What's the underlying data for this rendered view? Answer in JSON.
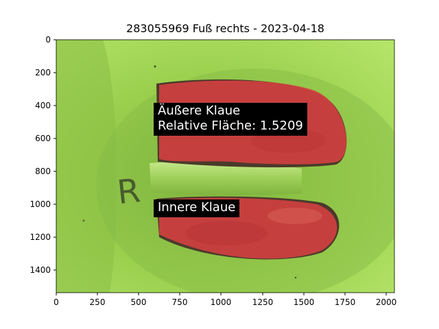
{
  "title": "283055969 Fuß rechts - 2023-04-18",
  "annotations": {
    "outer_name": "Äußere Klaue",
    "outer_area_label": "Relative Fläche: 1.5209",
    "inner_name": "Innere Klaue"
  },
  "image_marks": {
    "floor_letter": "R"
  },
  "axes": {
    "x_ticks": [
      "0",
      "250",
      "500",
      "750",
      "1000",
      "1250",
      "1500",
      "1750",
      "2000"
    ],
    "y_ticks": [
      "0",
      "200",
      "400",
      "600",
      "800",
      "1000",
      "1200",
      "1400"
    ],
    "xlim": [
      0,
      2048
    ],
    "ylim": [
      1536,
      0
    ]
  },
  "colors": {
    "background_mat": "#9ed24f",
    "mask_red": "#cf3e3e",
    "label_bg": "#000000",
    "label_text": "#ffffff"
  }
}
